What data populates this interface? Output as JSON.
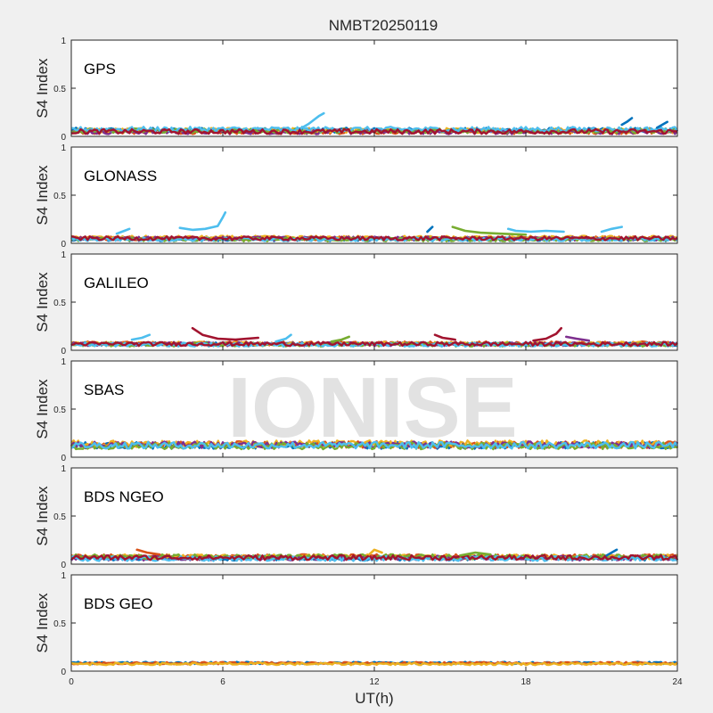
{
  "figure": {
    "title": "NMBT20250119",
    "watermark": "IONISE"
  },
  "palette": [
    "#0072BD",
    "#D95319",
    "#EDB120",
    "#7E2F8E",
    "#77AC30",
    "#4DBEEE",
    "#A2142F"
  ],
  "chart_data": {
    "type": "line",
    "title": "NMBT20250119",
    "xlabel": "UT(h)",
    "ylabel": "S4 Index",
    "xlim": [
      0,
      24
    ],
    "xticks": [
      0,
      6,
      12,
      18,
      24
    ],
    "ylim": [
      0,
      1
    ],
    "yticks": [
      0,
      0.5,
      1
    ],
    "ytick_labels": [
      "0",
      "0.5",
      "1"
    ],
    "panels": [
      {
        "label": "GPS",
        "baseline": 0.06,
        "noise": 0.025,
        "series_count": 7,
        "spikes": [
          {
            "x": [
              9.2,
              9.4,
              9.6,
              9.8,
              10.0
            ],
            "y": [
              0.1,
              0.13,
              0.17,
              0.21,
              0.24
            ],
            "color": "#4DBEEE"
          },
          {
            "x": [
              21.8,
              22.0,
              22.2
            ],
            "y": [
              0.12,
              0.15,
              0.19
            ],
            "color": "#0072BD"
          },
          {
            "x": [
              23.2,
              23.4,
              23.6
            ],
            "y": [
              0.09,
              0.12,
              0.15
            ],
            "color": "#0072BD"
          }
        ]
      },
      {
        "label": "GLONASS",
        "baseline": 0.05,
        "noise": 0.02,
        "series_count": 7,
        "spikes": [
          {
            "x": [
              4.3,
              4.8,
              5.3,
              5.8,
              6.0,
              6.1
            ],
            "y": [
              0.16,
              0.14,
              0.15,
              0.18,
              0.27,
              0.32
            ],
            "color": "#4DBEEE"
          },
          {
            "x": [
              1.8,
              2.1,
              2.3
            ],
            "y": [
              0.1,
              0.13,
              0.15
            ],
            "color": "#4DBEEE"
          },
          {
            "x": [
              14.1,
              14.3
            ],
            "y": [
              0.12,
              0.17
            ],
            "color": "#0072BD"
          },
          {
            "x": [
              15.1,
              15.6,
              16.2,
              17.0,
              18.0
            ],
            "y": [
              0.17,
              0.13,
              0.11,
              0.1,
              0.09
            ],
            "color": "#77AC30"
          },
          {
            "x": [
              17.3,
              17.6,
              18.2,
              18.8,
              19.5
            ],
            "y": [
              0.15,
              0.13,
              0.12,
              0.13,
              0.12
            ],
            "color": "#4DBEEE"
          },
          {
            "x": [
              21.0,
              21.4,
              21.8
            ],
            "y": [
              0.12,
              0.15,
              0.17
            ],
            "color": "#4DBEEE"
          }
        ]
      },
      {
        "label": "GALILEO",
        "baseline": 0.06,
        "noise": 0.02,
        "series_count": 7,
        "spikes": [
          {
            "x": [
              4.8,
              5.2,
              5.8,
              6.5,
              7.4
            ],
            "y": [
              0.23,
              0.16,
              0.12,
              0.11,
              0.13
            ],
            "color": "#A2142F"
          },
          {
            "x": [
              2.4,
              2.8,
              3.1
            ],
            "y": [
              0.11,
              0.13,
              0.16
            ],
            "color": "#4DBEEE"
          },
          {
            "x": [
              8.1,
              8.5,
              8.7
            ],
            "y": [
              0.09,
              0.12,
              0.16
            ],
            "color": "#4DBEEE"
          },
          {
            "x": [
              10.3,
              10.7,
              11.0
            ],
            "y": [
              0.09,
              0.11,
              0.14
            ],
            "color": "#77AC30"
          },
          {
            "x": [
              14.4,
              14.7,
              15.2
            ],
            "y": [
              0.16,
              0.13,
              0.11
            ],
            "color": "#A2142F"
          },
          {
            "x": [
              18.3,
              18.8,
              19.2,
              19.4
            ],
            "y": [
              0.1,
              0.12,
              0.17,
              0.23
            ],
            "color": "#A2142F"
          },
          {
            "x": [
              19.6,
              20.0,
              20.5
            ],
            "y": [
              0.14,
              0.12,
              0.1
            ],
            "color": "#7E2F8E"
          }
        ]
      },
      {
        "label": "SBAS",
        "baseline": 0.12,
        "noise": 0.035,
        "series_count": 6,
        "spikes": []
      },
      {
        "label": "BDS NGEO",
        "baseline": 0.07,
        "noise": 0.025,
        "series_count": 7,
        "spikes": [
          {
            "x": [
              2.6,
              3.0,
              3.5
            ],
            "y": [
              0.15,
              0.12,
              0.1
            ],
            "color": "#D95319"
          },
          {
            "x": [
              11.8,
              12.0,
              12.3
            ],
            "y": [
              0.1,
              0.15,
              0.12
            ],
            "color": "#EDB120"
          },
          {
            "x": [
              21.2,
              21.4,
              21.6
            ],
            "y": [
              0.09,
              0.12,
              0.15
            ],
            "color": "#0072BD"
          },
          {
            "x": [
              15.4,
              16.0,
              16.6
            ],
            "y": [
              0.09,
              0.12,
              0.1
            ],
            "color": "#77AC30"
          }
        ]
      },
      {
        "label": "BDS GEO",
        "baseline": 0.08,
        "noise": 0.012,
        "series_count": 3,
        "spikes": []
      }
    ]
  }
}
